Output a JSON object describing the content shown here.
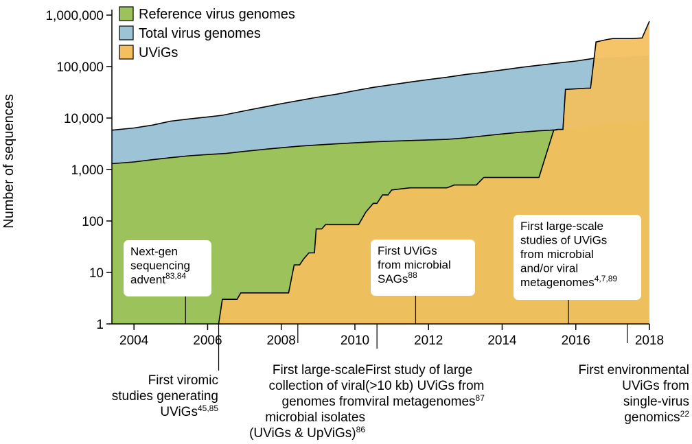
{
  "chart_data": {
    "type": "area",
    "ylabel": "Number of sequences",
    "xlabel": "",
    "yscale": "log",
    "ylim": [
      1,
      1000000
    ],
    "xlim": [
      2003.4,
      2018
    ],
    "y_ticks": [
      {
        "value": 1,
        "label": "1"
      },
      {
        "value": 10,
        "label": "10"
      },
      {
        "value": 100,
        "label": "100"
      },
      {
        "value": 1000,
        "label": "1,000"
      },
      {
        "value": 10000,
        "label": "10,000"
      },
      {
        "value": 100000,
        "label": "100,000"
      },
      {
        "value": 1000000,
        "label": "1,000,000"
      }
    ],
    "x_ticks": [
      {
        "value": 2004,
        "label": "2004"
      },
      {
        "value": 2006,
        "label": "2006"
      },
      {
        "value": 2008,
        "label": "2008"
      },
      {
        "value": 2010,
        "label": "2010"
      },
      {
        "value": 2012,
        "label": "2012"
      },
      {
        "value": 2014,
        "label": "2014"
      },
      {
        "value": 2016,
        "label": "2016"
      },
      {
        "value": 2018,
        "label": "2018"
      }
    ],
    "legend": {
      "placement": "top-left",
      "entries": [
        {
          "label": "Reference virus genomes",
          "color": "#9bc25b"
        },
        {
          "label": "Total virus genomes",
          "color": "#9dc3d6"
        },
        {
          "label": "UViGs",
          "color": "#f4bf5e"
        }
      ]
    },
    "series": [
      {
        "name": "Total virus genomes",
        "color": "#9dc3d6",
        "points": [
          [
            2003.4,
            5800
          ],
          [
            2004.0,
            6400
          ],
          [
            2004.5,
            7300
          ],
          [
            2005.0,
            8700
          ],
          [
            2005.5,
            9600
          ],
          [
            2006.0,
            10500
          ],
          [
            2006.4,
            11300
          ],
          [
            2007.0,
            13800
          ],
          [
            2007.5,
            16200
          ],
          [
            2008.0,
            19000
          ],
          [
            2008.5,
            22000
          ],
          [
            2009.0,
            25500
          ],
          [
            2009.5,
            29000
          ],
          [
            2010.0,
            34000
          ],
          [
            2010.5,
            39500
          ],
          [
            2011.0,
            44500
          ],
          [
            2011.5,
            50000
          ],
          [
            2012.0,
            56000
          ],
          [
            2012.5,
            62000
          ],
          [
            2013.0,
            70000
          ],
          [
            2013.5,
            77000
          ],
          [
            2014.0,
            86000
          ],
          [
            2014.5,
            96000
          ],
          [
            2015.0,
            106000
          ],
          [
            2015.5,
            117000
          ],
          [
            2016.0,
            128000
          ],
          [
            2016.5,
            145000
          ],
          [
            2018.0,
            165000
          ]
        ]
      },
      {
        "name": "Reference virus genomes",
        "color": "#9bc25b",
        "points": [
          [
            2003.4,
            1300
          ],
          [
            2004.0,
            1400
          ],
          [
            2004.5,
            1550
          ],
          [
            2005.0,
            1700
          ],
          [
            2005.5,
            1850
          ],
          [
            2006.0,
            1950
          ],
          [
            2006.5,
            2050
          ],
          [
            2007.0,
            2250
          ],
          [
            2007.5,
            2450
          ],
          [
            2008.0,
            2650
          ],
          [
            2008.5,
            2850
          ],
          [
            2009.0,
            3000
          ],
          [
            2009.5,
            3150
          ],
          [
            2010.0,
            3300
          ],
          [
            2010.5,
            3450
          ],
          [
            2011.0,
            3550
          ],
          [
            2011.5,
            3650
          ],
          [
            2012.0,
            3750
          ],
          [
            2012.5,
            3850
          ],
          [
            2013.0,
            4100
          ],
          [
            2013.5,
            4500
          ],
          [
            2014.0,
            4900
          ],
          [
            2014.5,
            5300
          ],
          [
            2015.0,
            5650
          ],
          [
            2015.5,
            5900
          ],
          [
            2016.0,
            6500
          ],
          [
            2016.5,
            7300
          ],
          [
            2017.0,
            7900
          ],
          [
            2018.0,
            9000
          ]
        ]
      },
      {
        "name": "UViGs",
        "color": "#f4bf5e",
        "points": [
          [
            2006.3,
            1
          ],
          [
            2006.4,
            3
          ],
          [
            2006.8,
            3
          ],
          [
            2006.9,
            4
          ],
          [
            2008.0,
            4
          ],
          [
            2008.2,
            4
          ],
          [
            2008.35,
            14
          ],
          [
            2008.5,
            14
          ],
          [
            2008.6,
            18
          ],
          [
            2008.75,
            24
          ],
          [
            2008.9,
            24
          ],
          [
            2008.95,
            70
          ],
          [
            2009.1,
            70
          ],
          [
            2009.2,
            85
          ],
          [
            2009.5,
            85
          ],
          [
            2010.1,
            85
          ],
          [
            2010.3,
            150
          ],
          [
            2010.5,
            220
          ],
          [
            2010.6,
            220
          ],
          [
            2010.75,
            320
          ],
          [
            2010.9,
            320
          ],
          [
            2011.0,
            400
          ],
          [
            2011.5,
            440
          ],
          [
            2012.5,
            440
          ],
          [
            2012.7,
            500
          ],
          [
            2013.3,
            500
          ],
          [
            2013.5,
            700
          ],
          [
            2015.0,
            700
          ],
          [
            2015.4,
            5800
          ],
          [
            2015.5,
            6000
          ],
          [
            2015.65,
            6000
          ],
          [
            2015.72,
            36000
          ],
          [
            2016.0,
            37000
          ],
          [
            2016.3,
            38000
          ],
          [
            2016.4,
            38000
          ],
          [
            2016.55,
            300000
          ],
          [
            2016.8,
            330000
          ],
          [
            2017.0,
            350000
          ],
          [
            2017.5,
            350000
          ],
          [
            2017.8,
            360000
          ],
          [
            2018.0,
            760000
          ]
        ]
      }
    ],
    "annotations_in_boxes": [
      {
        "x": 2005.4,
        "lines": [
          {
            "t": "Next-gen"
          },
          {
            "t": "sequencing"
          },
          {
            "t": "advent",
            "sup": "83,84"
          }
        ]
      },
      {
        "x": 2011.65,
        "lines": [
          {
            "t": "First UViGs"
          },
          {
            "t": "from microbial"
          },
          {
            "t": "SAGs",
            "sup": "88"
          }
        ]
      },
      {
        "x": 2015.8,
        "lines": [
          {
            "t": "First large-scale"
          },
          {
            "t": "studies of UViGs"
          },
          {
            "t": "from microbial"
          },
          {
            "t": "and/or viral"
          },
          {
            "t": "metagenomes",
            "sup": "4,7,89"
          }
        ]
      }
    ],
    "annotations_below": [
      {
        "x": 2006.3,
        "lines": [
          {
            "t": "First viromic"
          },
          {
            "t": "studies generating"
          },
          {
            "t": "UViGs",
            "sup": "45,85"
          }
        ]
      },
      {
        "x": 2008.45,
        "lines": [
          {
            "t": "First large-scale"
          },
          {
            "t": "collection of viral"
          },
          {
            "t": "genomes from"
          },
          {
            "t": "microbial isolates"
          },
          {
            "t": "(UViGs & UpViGs)",
            "sup": "86"
          }
        ]
      },
      {
        "x": 2010.6,
        "lines": [
          {
            "t": "First study of large"
          },
          {
            "t": "(>10 kb) UViGs from"
          },
          {
            "t": "viral metagenomes",
            "sup": "87"
          }
        ]
      },
      {
        "x": 2017.4,
        "lines": [
          {
            "t": "First environmental"
          },
          {
            "t": "UViGs from"
          },
          {
            "t": "single-virus"
          },
          {
            "t": "genomics",
            "sup": "22"
          }
        ]
      }
    ]
  }
}
